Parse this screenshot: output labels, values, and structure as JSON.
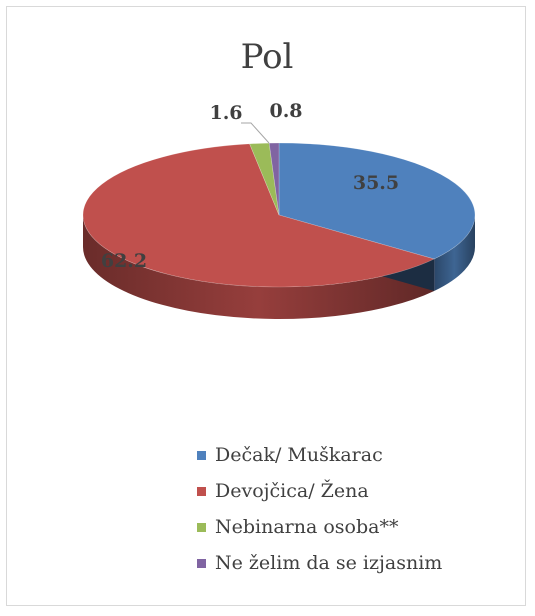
{
  "chart_data": {
    "type": "pie",
    "title": "Pol",
    "categories": [
      "Dečak/ Muškarac",
      "Devojčica/ Žena",
      "Nebinarna osoba**",
      "Ne želim da se izjasnim"
    ],
    "values": [
      35.5,
      62.2,
      1.6,
      0.8
    ],
    "value_labels": [
      "35.5",
      "62.2",
      "1.6",
      "0.8"
    ],
    "colors": [
      "#4f81bd",
      "#c0504d",
      "#9bbb59",
      "#8064a2"
    ],
    "legend_position": "bottom",
    "style": "3d"
  }
}
